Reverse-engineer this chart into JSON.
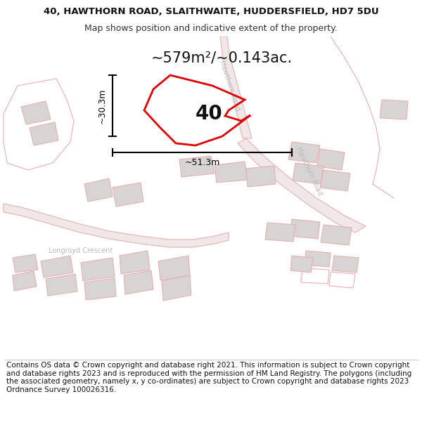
{
  "title_line1": "40, HAWTHORN ROAD, SLAITHWAITE, HUDDERSFIELD, HD7 5DU",
  "title_line2": "Map shows position and indicative extent of the property.",
  "area_label": "~579m²/~0.143ac.",
  "property_number": "40",
  "dim_width": "~51.3m",
  "dim_height": "~30.3m",
  "road_label_top": "Hawthorn Road",
  "road_label_mid": "Hawthorn Road",
  "street_label": "Longroyd Crescent",
  "footer_text": "Contains OS data © Crown copyright and database right 2021. This information is subject to Crown copyright and database rights 2023 and is reproduced with the permission of HM Land Registry. The polygons (including the associated geometry, namely x, y co-ordinates) are subject to Crown copyright and database rights 2023 Ordnance Survey 100026316.",
  "map_bg": "#ffffff",
  "plot_color": "#dd0000",
  "building_fill": "#d8d4d4",
  "building_edge": "#e8b0b0",
  "road_fill": "#f0e8e8",
  "road_edge": "#e8b0b0",
  "dim_color": "#000000",
  "road_text_color": "#bbbbbb",
  "title_fontsize": 9.5,
  "footer_fontsize": 7.5
}
